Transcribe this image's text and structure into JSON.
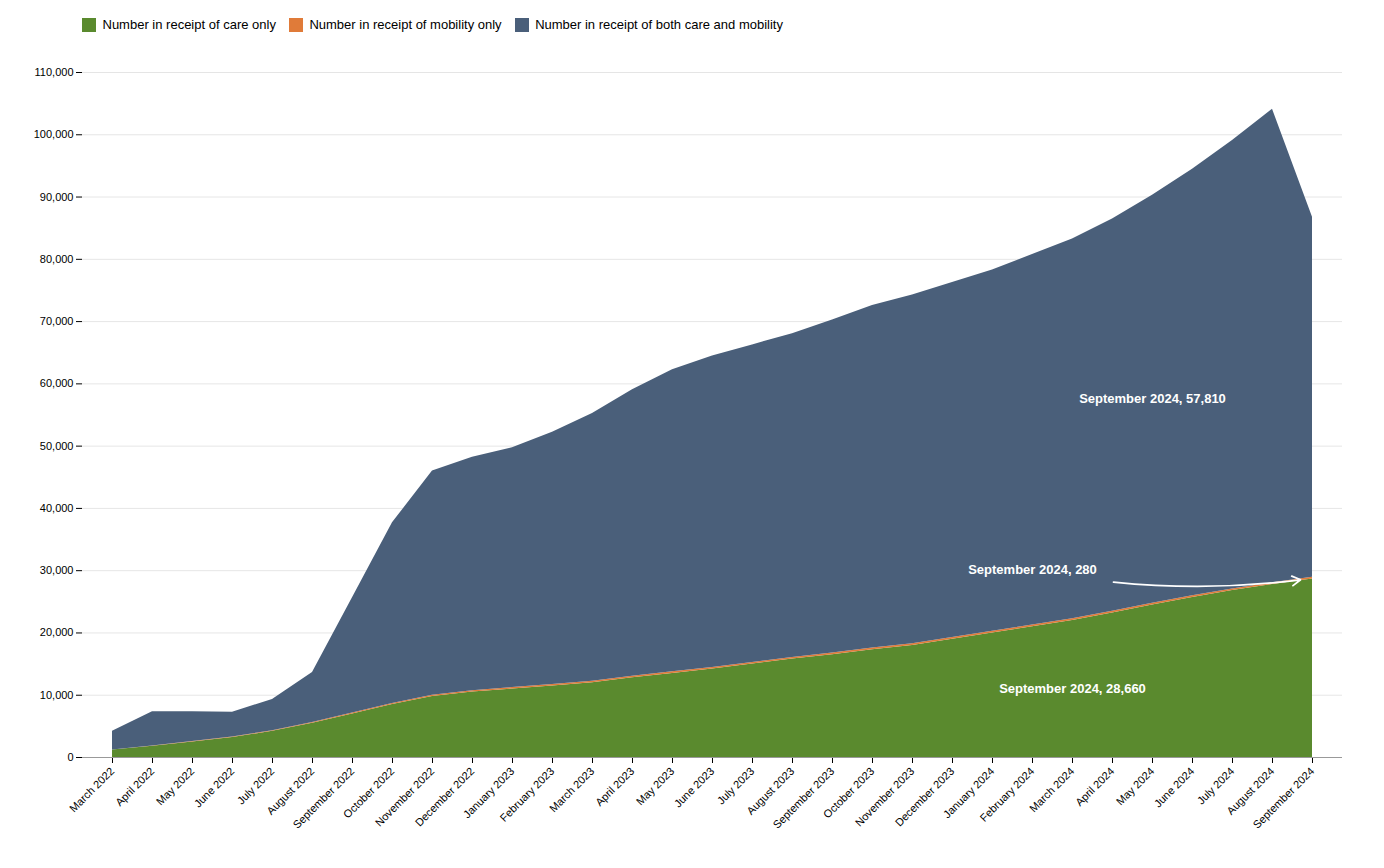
{
  "chart_data": {
    "type": "area",
    "stacked": true,
    "categories": [
      "March 2022",
      "April 2022",
      "May 2022",
      "June 2022",
      "July 2022",
      "August 2022",
      "September 2022",
      "October 2022",
      "November 2022",
      "December 2022",
      "January 2023",
      "February 2023",
      "March 2023",
      "April 2023",
      "May 2023",
      "June 2023",
      "July 2023",
      "August 2023",
      "September 2023",
      "October 2023",
      "November 2023",
      "December 2023",
      "January 2024",
      "February 2024",
      "March 2024",
      "April 2024",
      "May 2024",
      "June 2024",
      "July 2024",
      "August 2024",
      "September 2024"
    ],
    "series": [
      {
        "name": "Number in receipt of care only",
        "color": "#5a8a2e",
        "values": [
          1200,
          1800,
          2500,
          3200,
          4200,
          5500,
          7000,
          8500,
          9800,
          10500,
          11000,
          11500,
          12000,
          12800,
          13500,
          14200,
          15000,
          15800,
          16500,
          17300,
          18000,
          19000,
          20000,
          21000,
          22000,
          23200,
          24500,
          25700,
          26800,
          27800,
          28660
        ]
      },
      {
        "name": "Number in receipt of mobility only",
        "color": "#e07b39",
        "values": [
          20,
          40,
          60,
          80,
          100,
          130,
          160,
          185,
          205,
          220,
          230,
          238,
          244,
          249,
          253,
          256,
          258,
          260,
          262,
          264,
          266,
          268,
          270,
          272,
          274,
          275,
          276,
          277,
          278,
          279,
          280
        ]
      },
      {
        "name": "Number in receipt of both care and mobility",
        "color": "#4a5f7a",
        "values": [
          3000,
          5500,
          4800,
          4000,
          5000,
          8000,
          18500,
          29000,
          36000,
          37500,
          38500,
          40500,
          43000,
          46000,
          48500,
          50000,
          51000,
          52000,
          53500,
          55000,
          56000,
          57000,
          58000,
          59500,
          61000,
          63000,
          65500,
          68500,
          72000,
          76000,
          57810
        ]
      }
    ],
    "ylim": [
      0,
      110000
    ],
    "yticks": [
      0,
      {
        "value": 10000,
        "label": "10,000"
      },
      {
        "value": 20000,
        "label": "20,000"
      },
      {
        "value": 30000,
        "label": "30,000"
      },
      {
        "value": 40000,
        "label": "40,000"
      },
      {
        "value": 50000,
        "label": "50,000"
      },
      {
        "value": 60000,
        "label": "60,000"
      },
      {
        "value": 70000,
        "label": "70,000"
      },
      {
        "value": 80000,
        "label": "80,000"
      },
      {
        "value": 90000,
        "label": "90,000"
      },
      {
        "value": 100000,
        "label": "100,000"
      },
      {
        "value": 110000,
        "label": "110,000"
      }
    ],
    "grid": true,
    "legend": "upper left",
    "annotations": [
      "September 2024, 28,660",
      "September 2024, 280",
      "September 2024, 57,810"
    ]
  }
}
